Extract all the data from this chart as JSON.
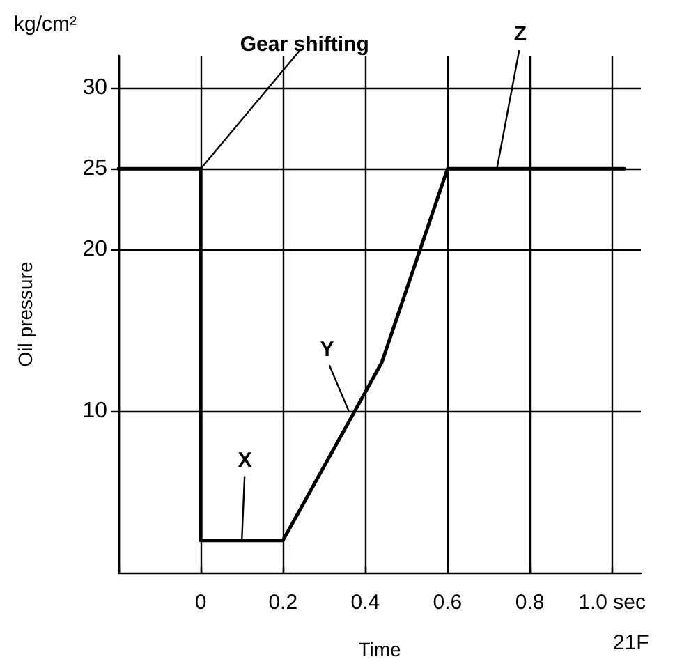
{
  "chart_data": {
    "type": "line",
    "xlabel": "Time",
    "ylabel": "Oil pressure",
    "x": [
      -0.2,
      0,
      0,
      0.2,
      0.44,
      0.6,
      1.03
    ],
    "series": [
      {
        "color": "#000000",
        "values": [
          25,
          25,
          2,
          2,
          13,
          25,
          25
        ]
      }
    ],
    "xlim": [
      -0.2,
      1.07
    ],
    "ylim": [
      0,
      32
    ],
    "xticks": [
      {
        "value": -0.2,
        "label": null
      },
      0,
      0.2,
      0.4,
      0.6,
      0.8,
      {
        "value": 1.0,
        "label": "1.0 sec"
      }
    ],
    "yticks": [
      10,
      20,
      25,
      30
    ],
    "grid": true,
    "marker": "none",
    "line_style": "solid",
    "annotations": [
      {
        "text": "Gear shifting",
        "x": 0,
        "y": 25
      },
      {
        "text": "X",
        "x": 0.1,
        "y": 2
      },
      {
        "text": "Y",
        "x": 0.36,
        "y": 10
      },
      {
        "text": "Z",
        "x": 0.72,
        "y": 25
      },
      "kg/cm²",
      "21F"
    ]
  }
}
